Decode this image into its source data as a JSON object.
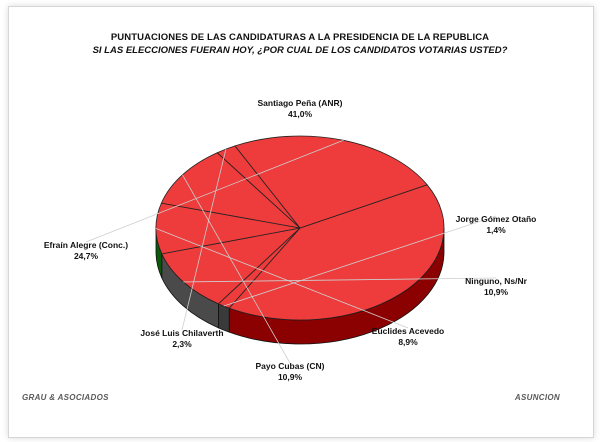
{
  "header": {
    "title": "PUNTUACIONES DE LAS CANDIDATURAS A LA PRESIDENCIA DE LA REPUBLICA",
    "subtitle": "SI LAS ELECCIONES FUERAN HOY, ¿POR CUAL DE LOS CANDIDATOS VOTARIAS USTED?"
  },
  "footer": {
    "left": "GRAU & ASOCIADOS",
    "right": "ASUNCION"
  },
  "colors": {
    "santiago": "#ee3b3b",
    "jorge": "#ee3b3b",
    "ninguno": "#ee3b3b",
    "euclides": "#ee3b3b",
    "payo": "#ee3b3b",
    "jose": "#ee3b3b",
    "efrain": "#ee3b3b",
    "side_santiago": "#8b0000",
    "side_jorge": "#3a3a3a",
    "side_ninguno": "#4a4a4a",
    "side_euclides": "#0a5a0a",
    "side_payo": "#8a0a9a",
    "side_jose": "#9a9a10",
    "side_efrain": "#0a0a8a"
  },
  "chart_data": {
    "type": "pie",
    "title": "PUNTUACIONES DE LAS CANDIDATURAS A LA PRESIDENCIA DE LA REPUBLICA",
    "subtitle": "SI LAS ELECCIONES FUERAN HOY, ¿POR CUAL DE LOS CANDIDATOS VOTARIAS USTED?",
    "slices": [
      {
        "label": "Santiago Peña (ANR)",
        "value": 41.0,
        "display": "41,0%"
      },
      {
        "label": "Jorge Gómez Otaño",
        "value": 1.4,
        "display": "1,4%"
      },
      {
        "label": "Ninguno, Ns/Nr",
        "value": 10.9,
        "display": "10,9%"
      },
      {
        "label": "Euclides Acevedo",
        "value": 8.9,
        "display": "8,9%"
      },
      {
        "label": "Payo Cubas (CN)",
        "value": 10.9,
        "display": "10,9%"
      },
      {
        "label": "José Luis Chilaverth",
        "value": 2.3,
        "display": "2,3%"
      },
      {
        "label": "Efraín Alegre (Conc.)",
        "value": 24.7,
        "display": "24,7%"
      }
    ],
    "style": "3d"
  }
}
